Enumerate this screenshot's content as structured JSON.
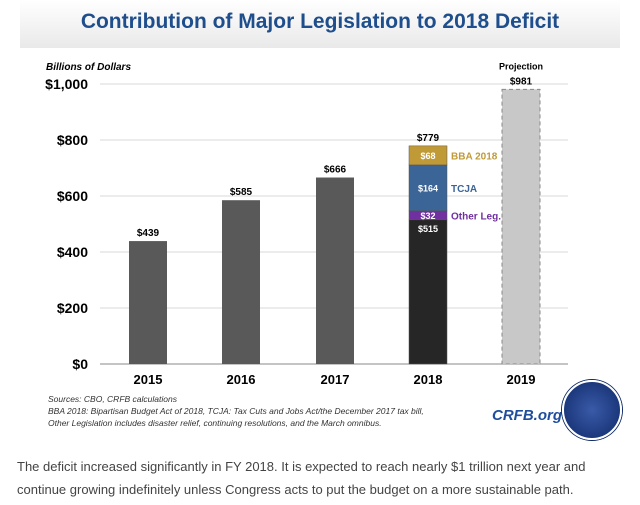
{
  "chart_data": {
    "type": "bar",
    "title": "Contribution of Major Legislation to 2018 Deficit",
    "ylabel": "Billions of Dollars",
    "ylim": [
      0,
      1000
    ],
    "yticks": [
      "$0",
      "$200",
      "$400",
      "$600",
      "$800",
      "$1,000"
    ],
    "ytick_values": [
      0,
      200,
      400,
      600,
      800,
      1000
    ],
    "categories": [
      "2015",
      "2016",
      "2017",
      "2018",
      "2019"
    ],
    "totals": [
      439,
      585,
      666,
      779,
      981
    ],
    "total_labels": [
      "$439",
      "$585",
      "$666",
      "$779",
      "$981"
    ],
    "stack_2018": [
      {
        "name": "Base",
        "value": 515,
        "label": "$515",
        "color": "#262626",
        "legend": ""
      },
      {
        "name": "Other Leg.",
        "value": 32,
        "label": "$32",
        "color": "#7030a0",
        "legend": "Other Leg."
      },
      {
        "name": "TCJA",
        "value": 164,
        "label": "$164",
        "color": "#3b6497",
        "legend": "TCJA"
      },
      {
        "name": "BBA 2018",
        "value": 68,
        "label": "$68",
        "color": "#c19a38",
        "legend": "BBA 2018"
      }
    ],
    "bar_color": "#595959",
    "projection_color": "#c8c8c8",
    "projection_label": "Projection",
    "grid": true
  },
  "notes": {
    "sources": "Sources: CBO, CRFB calculations",
    "line2": "BBA 2018: Bipartisan Budget Act of 2018, TCJA: Tax Cuts and Jobs Act/the December 2017 tax bill,",
    "line3": "Other Legislation includes disaster relief, continuing resolutions, and the March omnibus."
  },
  "brand": "CRFB.org",
  "caption": "The deficit increased significantly in FY 2018. It is expected to reach nearly $1 trillion next year and continue growing indefinitely unless Congress acts to put the budget on a more sustainable path."
}
